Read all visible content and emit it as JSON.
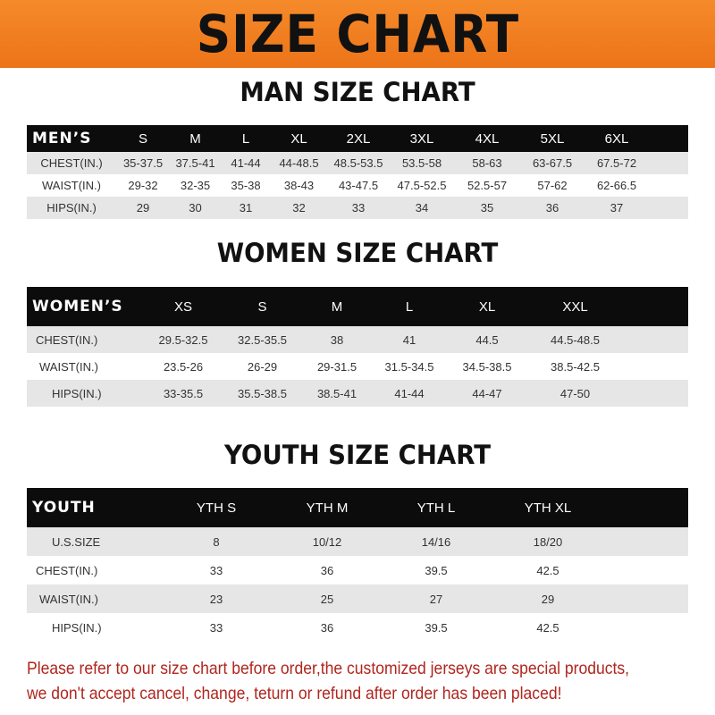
{
  "banner_title": "SIZE CHART",
  "men": {
    "title": "MAN SIZE CHART",
    "header": "MEN’S",
    "sizes": [
      "S",
      "M",
      "L",
      "XL",
      "2XL",
      "3XL",
      "4XL",
      "5XL",
      "6XL"
    ],
    "rows": [
      {
        "label": "CHEST(IN.)",
        "values": [
          "35-37.5",
          "37.5-41",
          "41-44",
          "44-48.5",
          "48.5-53.5",
          "53.5-58",
          "58-63",
          "63-67.5",
          "67.5-72"
        ]
      },
      {
        "label": "WAIST(IN.)",
        "values": [
          "29-32",
          "32-35",
          "35-38",
          "38-43",
          "43-47.5",
          "47.5-52.5",
          "52.5-57",
          "57-62",
          "62-66.5"
        ]
      },
      {
        "label": "HIPS(IN.)",
        "values": [
          "29",
          "30",
          "31",
          "32",
          "33",
          "34",
          "35",
          "36",
          "37"
        ]
      }
    ]
  },
  "women": {
    "title": "WOMEN SIZE CHART",
    "header": "WOMEN’S",
    "sizes": [
      "XS",
      "S",
      "M",
      "L",
      "XL",
      "XXL"
    ],
    "rows": [
      {
        "label": "CHEST(IN.)",
        "values": [
          "29.5-32.5",
          "32.5-35.5",
          "38",
          "41",
          "44.5",
          "44.5-48.5"
        ]
      },
      {
        "label": "WAIST(IN.)",
        "values": [
          "23.5-26",
          "26-29",
          "29-31.5",
          "31.5-34.5",
          "34.5-38.5",
          "38.5-42.5"
        ]
      },
      {
        "label": "HIPS(IN.)",
        "values": [
          "33-35.5",
          "35.5-38.5",
          "38.5-41",
          "41-44",
          "44-47",
          "47-50"
        ]
      }
    ]
  },
  "youth": {
    "title": "YOUTH SIZE CHART",
    "header": "YOUTH",
    "sizes": [
      "YTH S",
      "YTH M",
      "YTH L",
      "YTH XL"
    ],
    "rows": [
      {
        "label": "U.S.SIZE",
        "values": [
          "8",
          "10/12",
          "14/16",
          "18/20"
        ]
      },
      {
        "label": "CHEST(IN.)",
        "values": [
          "33",
          "36",
          "39.5",
          "42.5"
        ]
      },
      {
        "label": "WAIST(IN.)",
        "values": [
          "23",
          "25",
          "27",
          "29"
        ]
      },
      {
        "label": "HIPS(IN.)",
        "values": [
          "33",
          "36",
          "39.5",
          "42.5"
        ]
      }
    ]
  },
  "footer": {
    "line1": "Please refer to our size chart before order,the customized jerseys are special products,",
    "line2": "we don't accept cancel, change, teturn or refund after order has been placed!"
  }
}
